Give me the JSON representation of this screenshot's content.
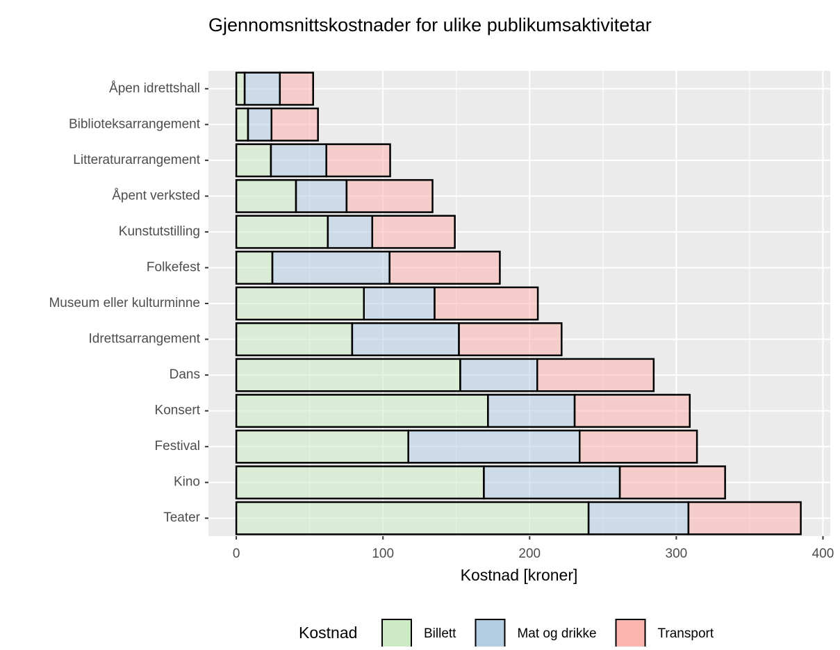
{
  "chart_data": {
    "type": "bar",
    "orientation": "horizontal",
    "stacked": true,
    "title": "Gjennomsnittskostnader for ulike publikumsaktivitetar",
    "xlabel": "Kostnad [kroner]",
    "legend_title": "Kostnad",
    "legend_position": "bottom",
    "grid": true,
    "categories": [
      "Åpen idrettshall",
      "Biblioteksarrangement",
      "Litteraturarrangement",
      "Åpent verksted",
      "Kunstutstilling",
      "Folkefest",
      "Museum eller kulturminne",
      "Idrettsarrangement",
      "Dans",
      "Konsert",
      "Festival",
      "Kino",
      "Teater"
    ],
    "series": [
      {
        "name": "Billett",
        "color": "#ccebc5",
        "values": [
          5.7,
          8,
          23.6,
          40.7,
          62.4,
          24.6,
          87,
          79,
          152.7,
          171.6,
          117.3,
          168.8,
          240.2
        ]
      },
      {
        "name": "Mat og drikke",
        "color": "#b3cde3",
        "values": [
          24,
          16,
          37.8,
          34.5,
          30.3,
          79.9,
          48.2,
          72.8,
          52.5,
          59.1,
          116.8,
          92.7,
          68.1
        ]
      },
      {
        "name": "Transport",
        "color": "#fbb4ae",
        "values": [
          22.7,
          31.7,
          43.5,
          58.6,
          56.3,
          75.2,
          70.4,
          70,
          79.4,
          78.5,
          80,
          71.8,
          76.6
        ]
      }
    ],
    "xlim": [
      -19,
      405
    ],
    "xticks": [
      0,
      100,
      200,
      300,
      400
    ]
  }
}
